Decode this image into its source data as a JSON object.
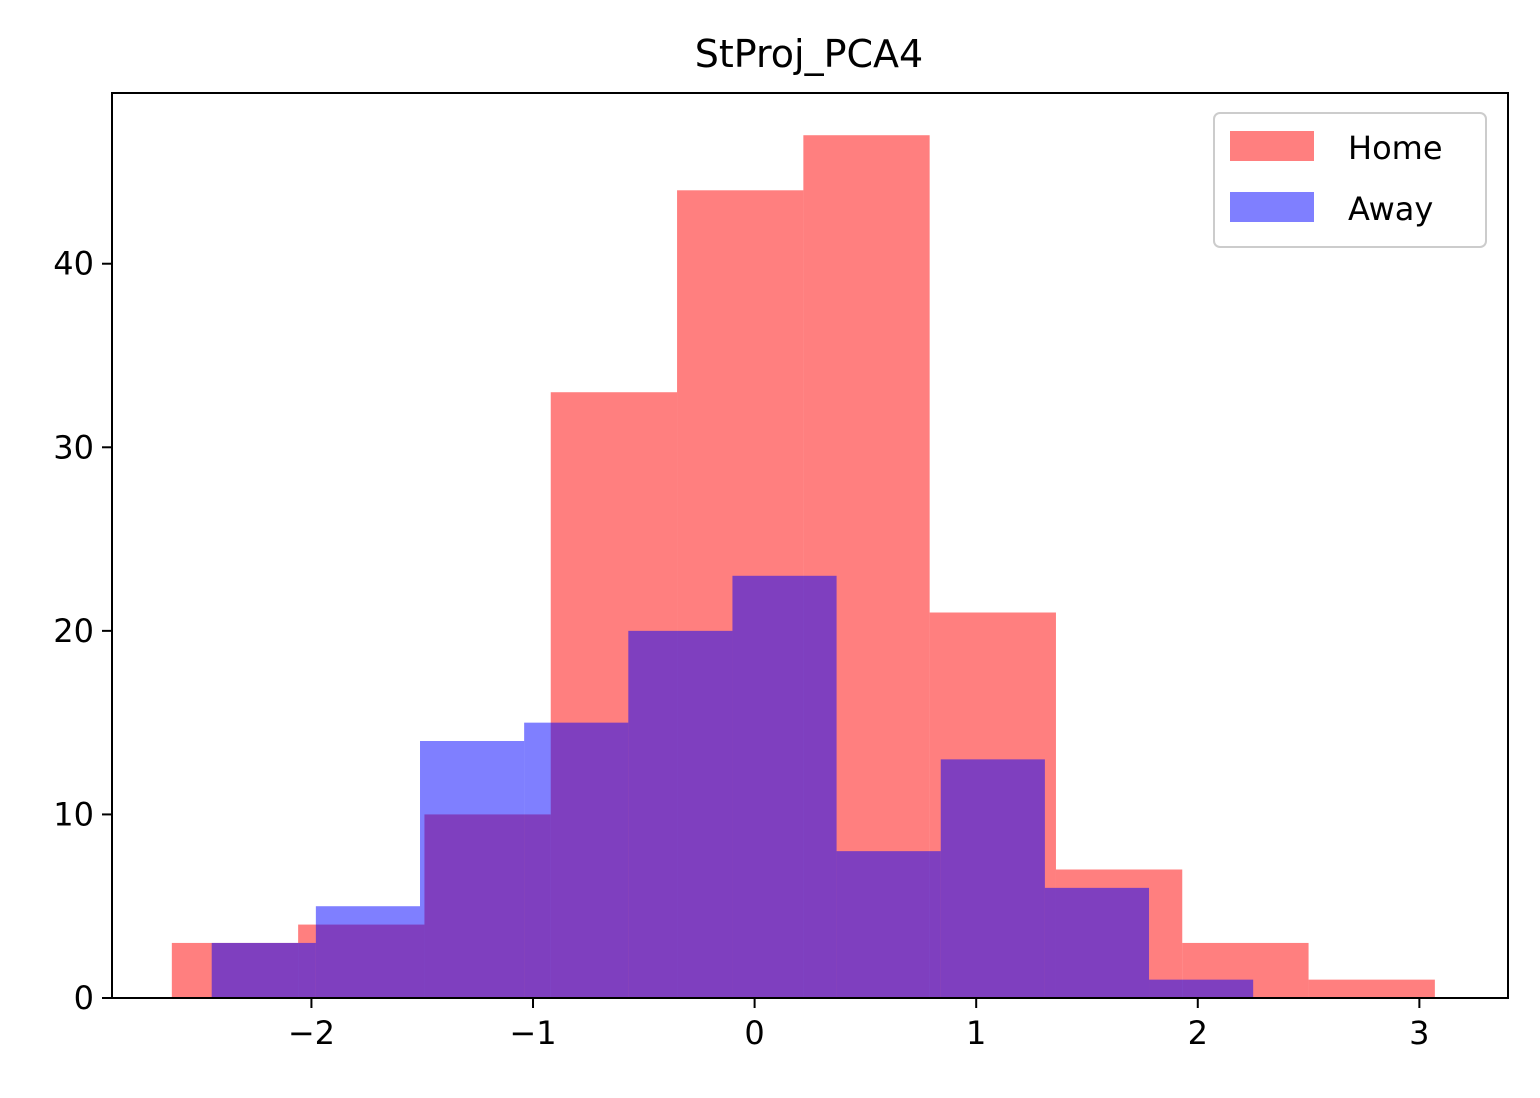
{
  "chart_data": {
    "type": "bar",
    "title": "StProj_PCA4",
    "xlabel": "",
    "ylabel": "",
    "xlim": [
      -2.9,
      3.4
    ],
    "ylim": [
      0,
      49.3
    ],
    "xticks": [
      -2,
      -1,
      0,
      1,
      2,
      3
    ],
    "xtick_labels": [
      "−2",
      "−1",
      "0",
      "1",
      "2",
      "3"
    ],
    "yticks": [
      0,
      10,
      20,
      30,
      40
    ],
    "ytick_labels": [
      "0",
      "10",
      "20",
      "30",
      "40"
    ],
    "grid": false,
    "legend_position": "top-right",
    "series": [
      {
        "name": "Home",
        "color": "#ff0000",
        "alpha": 0.5,
        "bin_edges": [
          -2.63,
          -2.06,
          -1.49,
          -0.92,
          -0.35,
          0.22,
          0.79,
          1.36,
          1.93,
          2.5,
          3.07
        ],
        "values": [
          3,
          4,
          10,
          33,
          44,
          47,
          21,
          7,
          3,
          1
        ]
      },
      {
        "name": "Away",
        "color": "#0000ff",
        "alpha": 0.5,
        "bin_edges": [
          -2.45,
          -1.98,
          -1.51,
          -1.04,
          -0.57,
          -0.1,
          0.37,
          0.84,
          1.31,
          1.78,
          2.25
        ],
        "values": [
          3,
          5,
          14,
          15,
          20,
          23,
          8,
          13,
          6,
          1
        ]
      }
    ]
  }
}
